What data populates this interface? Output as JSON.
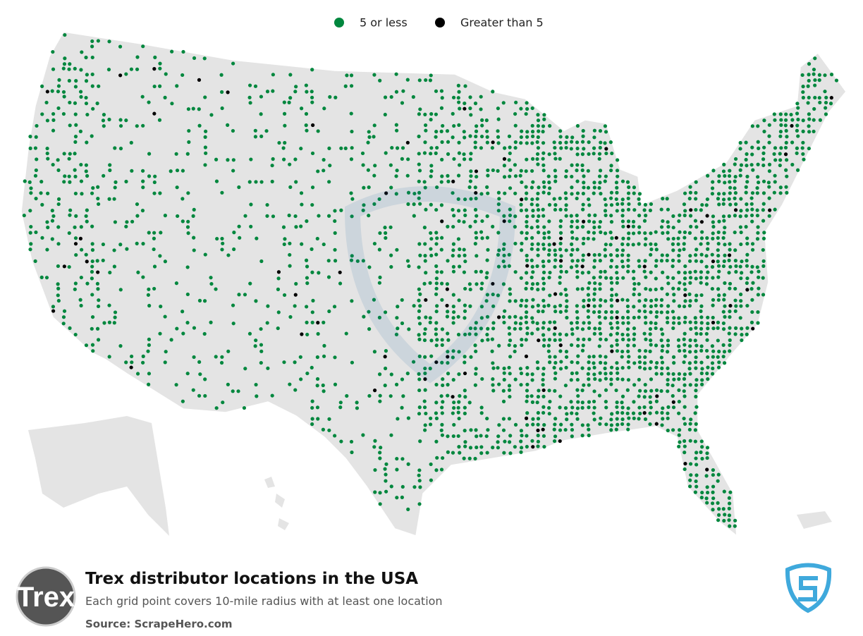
{
  "legend": {
    "items": [
      {
        "label": "5 or less",
        "color": "#00873e"
      },
      {
        "label": "Greater than 5",
        "color": "#000000"
      }
    ]
  },
  "title": "Trex distributor locations in the USA",
  "subtitle": "Each grid point covers 10-mile radius with at least one location",
  "source": "Source: ScrapeHero.com",
  "logo": "Trex"
}
